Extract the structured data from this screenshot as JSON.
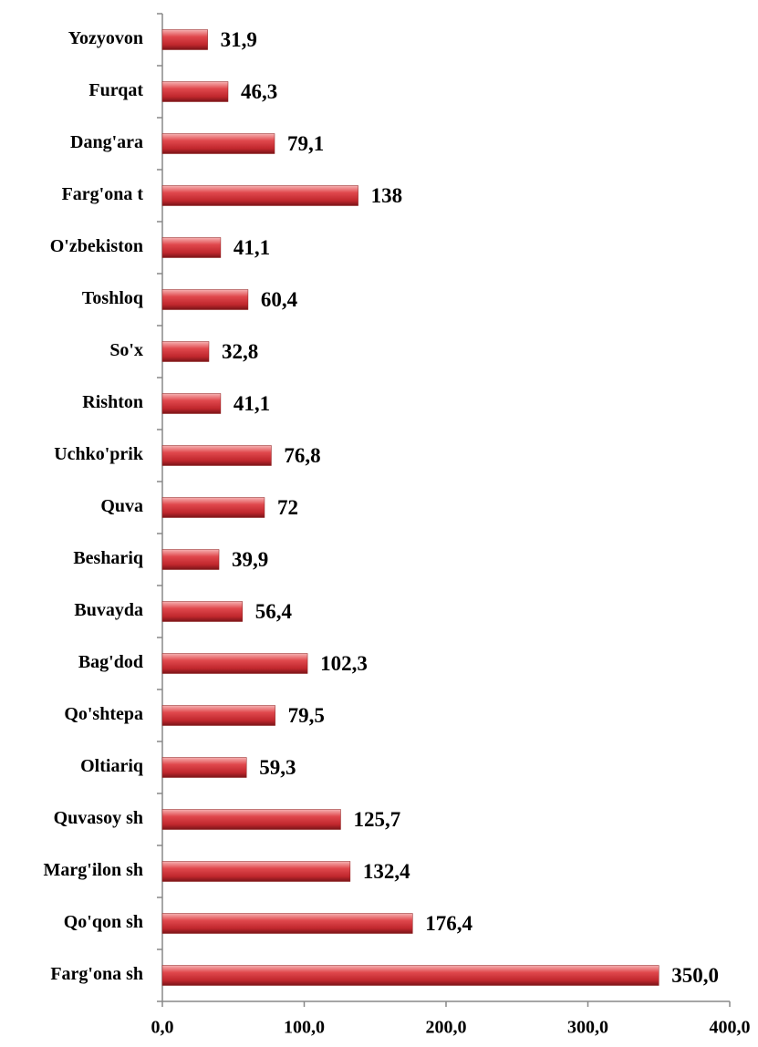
{
  "chart_data": {
    "type": "bar",
    "orientation": "horizontal",
    "categories": [
      "Yozyovon",
      "Furqat",
      "Dang'ara",
      "Farg'ona t",
      "O'zbekiston",
      "Toshloq",
      "So'x",
      "Rishton",
      "Uchko'prik",
      "Quva",
      "Beshariq",
      "Buvayda",
      "Bag'dod",
      "Qo'shtepa",
      "Oltiariq",
      "Quvasoy sh",
      "Marg'ilon sh",
      "Qo'qon sh",
      "Farg'ona sh"
    ],
    "values": [
      31.9,
      46.3,
      79.1,
      138,
      41.1,
      60.4,
      32.8,
      41.1,
      76.8,
      72,
      39.9,
      56.4,
      102.3,
      79.5,
      59.3,
      125.7,
      132.4,
      176.4,
      350.0
    ],
    "value_labels": [
      "31,9",
      "46,3",
      "79,1",
      "138",
      "41,1",
      "60,4",
      "32,8",
      "41,1",
      "76,8",
      "72",
      "39,9",
      "56,4",
      "102,3",
      "79,5",
      "59,3",
      "125,7",
      "132,4",
      "176,4",
      "350,0"
    ],
    "color": "#c0272d",
    "xlim": [
      0,
      400
    ],
    "xticks": [
      {
        "value": 0,
        "label": "0,0"
      },
      {
        "value": 100,
        "label": "100,0"
      },
      {
        "value": 200,
        "label": "200,0"
      },
      {
        "value": 300,
        "label": "300,0"
      },
      {
        "value": 400,
        "label": "400,0"
      }
    ],
    "grid": false
  }
}
